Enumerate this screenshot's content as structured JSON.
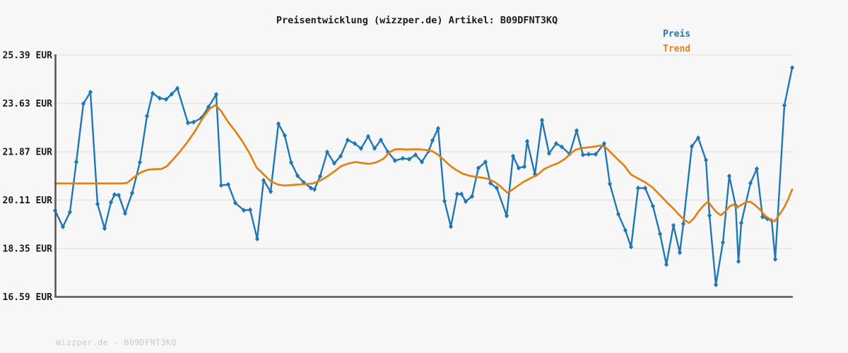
{
  "header": {
    "title": "Preisentwicklung (wizzper.de) Artikel: B09DFNT3KQ"
  },
  "legend": {
    "items": [
      {
        "label": "Preis",
        "color": "#1f77b4"
      },
      {
        "label": "Trend",
        "color": "#e08214"
      }
    ]
  },
  "footer": {
    "watermark": "Wizzper.de - B09DFNT3KQ"
  },
  "colors": {
    "background": "#f7f7f7",
    "gridline": "#e6e6e6",
    "axis": "#59595b",
    "tick_label": "#1b1b1b",
    "price_line": "#1f77b4",
    "trend_line": "#e08214",
    "watermark": "#c9c9c9"
  },
  "chart_data": {
    "type": "line",
    "title": "Preisentwicklung (wizzper.de) Artikel: B09DFNT3KQ",
    "xlabel": "",
    "ylabel": "",
    "x_unit": "time index (no x-axis labels shown); x stored as horizontal position in px",
    "grid": true,
    "legend_position": "top-right",
    "y_axis": {
      "unit": "EUR",
      "min": 16.59,
      "max": 25.39,
      "tick_values": [
        25.39,
        23.63,
        21.87,
        20.11,
        18.35,
        16.59
      ],
      "tick_labels": [
        "25.39 EUR",
        "23.63 EUR",
        "21.87 EUR",
        "20.11 EUR",
        "18.35 EUR",
        "16.59 EUR"
      ]
    },
    "series": [
      {
        "name": "Preis",
        "color": "#1f77b4",
        "markers": true,
        "points": [
          [
            78,
            19.73
          ],
          [
            89,
            19.14
          ],
          [
            99,
            19.68
          ],
          [
            108,
            21.5
          ],
          [
            118,
            23.62
          ],
          [
            128,
            24.04
          ],
          [
            138,
            19.97
          ],
          [
            148,
            19.08
          ],
          [
            157,
            20.03
          ],
          [
            162,
            20.31
          ],
          [
            168,
            20.29
          ],
          [
            177,
            19.63
          ],
          [
            187,
            20.37
          ],
          [
            198,
            21.49
          ],
          [
            208,
            23.17
          ],
          [
            216,
            24.0
          ],
          [
            226,
            23.82
          ],
          [
            235,
            23.78
          ],
          [
            243,
            23.97
          ],
          [
            251,
            24.18
          ],
          [
            266,
            22.92
          ],
          [
            274,
            22.95
          ],
          [
            285,
            23.1
          ],
          [
            295,
            23.5
          ],
          [
            306,
            23.96
          ],
          [
            313,
            20.65
          ],
          [
            323,
            20.68
          ],
          [
            333,
            20.01
          ],
          [
            345,
            19.74
          ],
          [
            354,
            19.76
          ],
          [
            364,
            18.7
          ],
          [
            373,
            20.83
          ],
          [
            383,
            20.42
          ],
          [
            394,
            22.89
          ],
          [
            403,
            22.46
          ],
          [
            412,
            21.48
          ],
          [
            421,
            21.0
          ],
          [
            430,
            20.75
          ],
          [
            440,
            20.55
          ],
          [
            445,
            20.5
          ],
          [
            453,
            20.98
          ],
          [
            463,
            21.86
          ],
          [
            473,
            21.45
          ],
          [
            482,
            21.71
          ],
          [
            492,
            22.3
          ],
          [
            502,
            22.17
          ],
          [
            511,
            21.99
          ],
          [
            521,
            22.43
          ],
          [
            530,
            21.99
          ],
          [
            539,
            22.3
          ],
          [
            549,
            21.86
          ],
          [
            559,
            21.55
          ],
          [
            570,
            21.63
          ],
          [
            579,
            21.6
          ],
          [
            588,
            21.76
          ],
          [
            597,
            21.5
          ],
          [
            607,
            21.91
          ],
          [
            612,
            22.28
          ],
          [
            620,
            22.72
          ],
          [
            629,
            20.08
          ],
          [
            638,
            19.15
          ],
          [
            647,
            20.33
          ],
          [
            653,
            20.33
          ],
          [
            659,
            20.06
          ],
          [
            668,
            20.25
          ],
          [
            677,
            21.28
          ],
          [
            687,
            21.5
          ],
          [
            694,
            20.73
          ],
          [
            703,
            20.55
          ],
          [
            717,
            19.54
          ],
          [
            726,
            21.71
          ],
          [
            734,
            21.28
          ],
          [
            742,
            21.33
          ],
          [
            746,
            22.25
          ],
          [
            757,
            21.05
          ],
          [
            767,
            23.02
          ],
          [
            777,
            21.81
          ],
          [
            787,
            22.17
          ],
          [
            795,
            22.05
          ],
          [
            806,
            21.79
          ],
          [
            816,
            22.64
          ],
          [
            825,
            21.76
          ],
          [
            833,
            21.78
          ],
          [
            843,
            21.78
          ],
          [
            855,
            22.17
          ],
          [
            863,
            20.7
          ],
          [
            875,
            19.6
          ],
          [
            885,
            19.01
          ],
          [
            893,
            18.41
          ],
          [
            903,
            20.55
          ],
          [
            913,
            20.55
          ],
          [
            924,
            19.89
          ],
          [
            934,
            18.88
          ],
          [
            943,
            17.77
          ],
          [
            953,
            19.19
          ],
          [
            962,
            18.2
          ],
          [
            967,
            19.25
          ],
          [
            979,
            22.07
          ],
          [
            988,
            22.38
          ],
          [
            999,
            21.57
          ],
          [
            1004,
            19.55
          ],
          [
            1013,
            17.03
          ],
          [
            1023,
            18.57
          ],
          [
            1032,
            20.99
          ],
          [
            1041,
            19.91
          ],
          [
            1045,
            17.88
          ],
          [
            1049,
            19.28
          ],
          [
            1062,
            20.73
          ],
          [
            1071,
            21.25
          ],
          [
            1079,
            19.5
          ],
          [
            1086,
            19.43
          ],
          [
            1092,
            19.37
          ],
          [
            1097,
            17.96
          ],
          [
            1110,
            23.56
          ],
          [
            1121,
            24.93
          ]
        ]
      },
      {
        "name": "Trend",
        "color": "#e08214",
        "markers": false,
        "points": [
          [
            78,
            20.72
          ],
          [
            95,
            20.72
          ],
          [
            115,
            20.72
          ],
          [
            135,
            20.72
          ],
          [
            155,
            20.72
          ],
          [
            172,
            20.72
          ],
          [
            180,
            20.74
          ],
          [
            190,
            20.95
          ],
          [
            200,
            21.13
          ],
          [
            210,
            21.22
          ],
          [
            220,
            21.24
          ],
          [
            228,
            21.24
          ],
          [
            236,
            21.34
          ],
          [
            246,
            21.62
          ],
          [
            256,
            21.92
          ],
          [
            266,
            22.25
          ],
          [
            276,
            22.62
          ],
          [
            287,
            23.1
          ],
          [
            297,
            23.44
          ],
          [
            305,
            23.57
          ],
          [
            313,
            23.35
          ],
          [
            323,
            22.95
          ],
          [
            333,
            22.62
          ],
          [
            343,
            22.25
          ],
          [
            353,
            21.82
          ],
          [
            363,
            21.3
          ],
          [
            373,
            21.05
          ],
          [
            383,
            20.8
          ],
          [
            393,
            20.68
          ],
          [
            403,
            20.64
          ],
          [
            413,
            20.66
          ],
          [
            423,
            20.68
          ],
          [
            433,
            20.69
          ],
          [
            443,
            20.72
          ],
          [
            453,
            20.82
          ],
          [
            463,
            20.97
          ],
          [
            473,
            21.15
          ],
          [
            483,
            21.35
          ],
          [
            493,
            21.44
          ],
          [
            503,
            21.5
          ],
          [
            513,
            21.46
          ],
          [
            523,
            21.43
          ],
          [
            533,
            21.49
          ],
          [
            543,
            21.62
          ],
          [
            551,
            21.85
          ],
          [
            558,
            21.95
          ],
          [
            566,
            21.97
          ],
          [
            575,
            21.95
          ],
          [
            584,
            21.96
          ],
          [
            593,
            21.96
          ],
          [
            602,
            21.94
          ],
          [
            611,
            21.9
          ],
          [
            619,
            21.78
          ],
          [
            628,
            21.58
          ],
          [
            637,
            21.36
          ],
          [
            646,
            21.2
          ],
          [
            655,
            21.07
          ],
          [
            664,
            21.0
          ],
          [
            673,
            20.96
          ],
          [
            682,
            20.93
          ],
          [
            691,
            20.88
          ],
          [
            700,
            20.77
          ],
          [
            708,
            20.62
          ],
          [
            714,
            20.47
          ],
          [
            718,
            20.38
          ],
          [
            724,
            20.47
          ],
          [
            732,
            20.62
          ],
          [
            740,
            20.76
          ],
          [
            750,
            20.9
          ],
          [
            760,
            21.02
          ],
          [
            770,
            21.24
          ],
          [
            780,
            21.36
          ],
          [
            790,
            21.46
          ],
          [
            800,
            21.62
          ],
          [
            808,
            21.82
          ],
          [
            815,
            21.95
          ],
          [
            822,
            22.0
          ],
          [
            832,
            22.03
          ],
          [
            842,
            22.06
          ],
          [
            850,
            22.1
          ],
          [
            857,
            22.03
          ],
          [
            863,
            21.88
          ],
          [
            873,
            21.62
          ],
          [
            883,
            21.38
          ],
          [
            893,
            21.04
          ],
          [
            903,
            20.9
          ],
          [
            913,
            20.76
          ],
          [
            923,
            20.58
          ],
          [
            933,
            20.32
          ],
          [
            943,
            20.05
          ],
          [
            953,
            19.8
          ],
          [
            962,
            19.55
          ],
          [
            969,
            19.38
          ],
          [
            975,
            19.28
          ],
          [
            982,
            19.45
          ],
          [
            989,
            19.72
          ],
          [
            996,
            19.92
          ],
          [
            1002,
            20.06
          ],
          [
            1008,
            19.85
          ],
          [
            1014,
            19.67
          ],
          [
            1020,
            19.56
          ],
          [
            1027,
            19.72
          ],
          [
            1033,
            19.9
          ],
          [
            1038,
            19.95
          ],
          [
            1043,
            19.84
          ],
          [
            1049,
            19.94
          ],
          [
            1056,
            20.04
          ],
          [
            1062,
            20.05
          ],
          [
            1069,
            19.92
          ],
          [
            1076,
            19.75
          ],
          [
            1083,
            19.54
          ],
          [
            1090,
            19.41
          ],
          [
            1096,
            19.34
          ],
          [
            1103,
            19.58
          ],
          [
            1110,
            19.86
          ],
          [
            1116,
            20.18
          ],
          [
            1121,
            20.5
          ]
        ]
      }
    ]
  }
}
